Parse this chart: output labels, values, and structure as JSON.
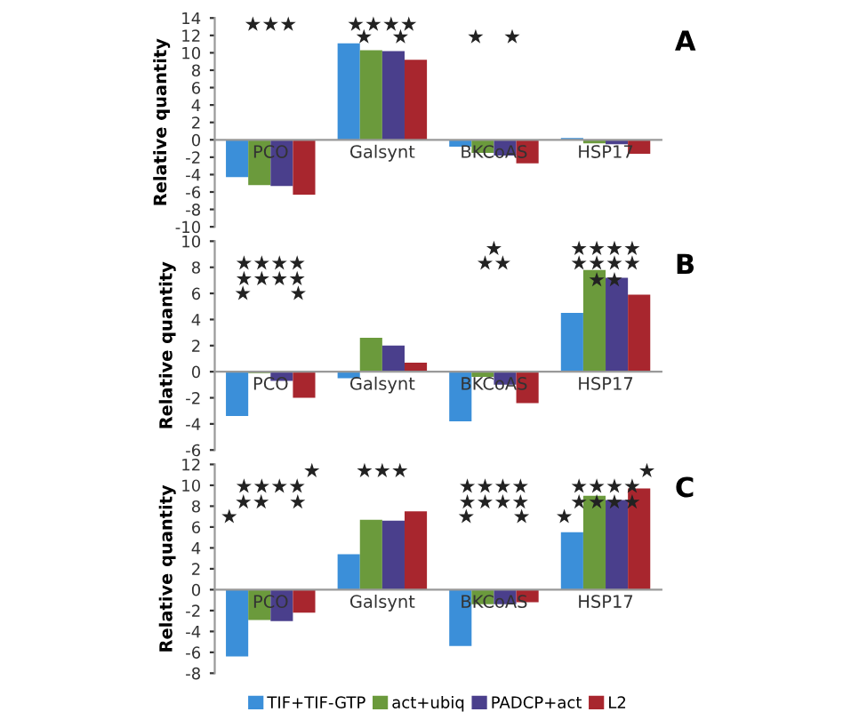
{
  "chart_data": [
    {
      "type": "bar",
      "ylabel": "Relative quantity",
      "categories": [
        "PCO",
        "Galsynt",
        "BKCoAS",
        "HSP17"
      ],
      "ylim": [
        -10,
        14
      ],
      "yticks": [
        -10,
        -8,
        -6,
        -4,
        -2,
        0,
        2,
        4,
        6,
        8,
        10,
        12,
        14
      ],
      "grid": false,
      "legend": false,
      "series": [
        {
          "color": "#3b8fd9",
          "values": [
            -4.3,
            11.1,
            -0.8,
            0.2
          ]
        },
        {
          "color": "#6b9a3c",
          "values": [
            -5.2,
            10.3,
            -1.5,
            -0.4
          ]
        },
        {
          "color": "#4a3f8c",
          "values": [
            -5.3,
            10.2,
            -1.8,
            -0.5
          ]
        },
        {
          "color": "#a8262e",
          "values": [
            -6.3,
            9.2,
            -2.7,
            -1.6
          ]
        }
      ],
      "annotations": [
        "A",
        "★★★",
        "★★★★",
        "★   ★",
        "★   ★"
      ]
    },
    {
      "type": "bar",
      "ylabel": "Relative quantity",
      "categories": [
        "PCO",
        "Galsynt",
        "BKCoAS",
        "HSP17"
      ],
      "ylim": [
        -6,
        10
      ],
      "yticks": [
        -6,
        -4,
        -2,
        0,
        2,
        4,
        6,
        8,
        10
      ],
      "grid": false,
      "legend": false,
      "series": [
        {
          "color": "#3b8fd9",
          "values": [
            -3.4,
            -0.5,
            -3.8,
            4.5
          ]
        },
        {
          "color": "#6b9a3c",
          "values": [
            -0.1,
            2.6,
            -0.4,
            7.8
          ]
        },
        {
          "color": "#4a3f8c",
          "values": [
            -0.7,
            2.0,
            -1.0,
            7.2
          ]
        },
        {
          "color": "#a8262e",
          "values": [
            -2.0,
            0.7,
            -2.4,
            5.9
          ]
        }
      ],
      "annotations": [
        "B",
        "★★★★",
        "★★★★",
        "★      ★",
        "★",
        "★★",
        "★★★★",
        "★★★★",
        "★★"
      ]
    },
    {
      "type": "bar",
      "ylabel": "Relative quantity",
      "categories": [
        "PCO",
        "Galsynt",
        "BKCoAS",
        "HSP17"
      ],
      "ylim": [
        -8,
        12
      ],
      "yticks": [
        -8,
        -6,
        -4,
        -2,
        0,
        2,
        4,
        6,
        8,
        10,
        12
      ],
      "grid": false,
      "legend": "bottom",
      "series": [
        {
          "name": "TIF+TIF-GTP",
          "color": "#3b8fd9",
          "values": [
            -6.4,
            3.4,
            -5.4,
            5.5
          ]
        },
        {
          "name": "act+ubiq",
          "color": "#6b9a3c",
          "values": [
            -2.9,
            6.7,
            -1.4,
            9.0
          ]
        },
        {
          "name": "PADCP+act",
          "color": "#4a3f8c",
          "values": [
            -3.0,
            6.6,
            -1.4,
            8.6
          ]
        },
        {
          "name": "L2",
          "color": "#a8262e",
          "values": [
            -2.2,
            7.5,
            -1.2,
            9.7
          ]
        }
      ],
      "annotations": [
        "C",
        "★",
        "★★★★",
        "★★   ★",
        "★",
        "★★★",
        "★★★★",
        "★★★★",
        "★      ★",
        "★",
        "★★★★",
        "★★★★",
        "★"
      ]
    }
  ]
}
